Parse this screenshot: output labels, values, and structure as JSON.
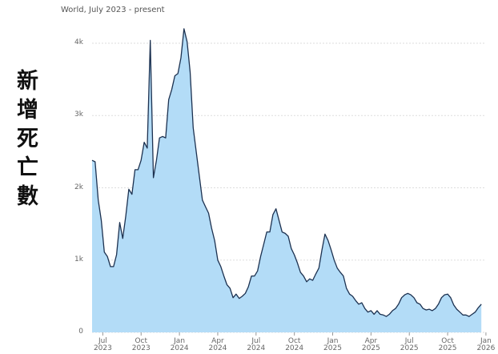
{
  "chart_data": {
    "type": "area",
    "subtitle": "World, July 2023 - present",
    "ylabel": "新增死亡數",
    "color": "#b3dcf7",
    "line_color": "#1c3150",
    "grid": true,
    "xlim": [
      2023.43,
      2025.99
    ],
    "ylim": [
      0,
      4000
    ],
    "yticks": [
      0,
      {
        "value": 1000,
        "label": "1k"
      },
      {
        "value": 2000,
        "label": "2k"
      },
      {
        "value": 3000,
        "label": "3k"
      },
      {
        "value": 4000,
        "label": "4k"
      }
    ],
    "xticks": [
      {
        "value": 2023.5,
        "label": "Jul 2023"
      },
      {
        "value": 2023.75,
        "label": "Oct 2023"
      },
      {
        "value": 2024,
        "label": "Jan 2024"
      },
      {
        "value": 2024.25,
        "label": "Apr 2024"
      },
      {
        "value": 2024.5,
        "label": "Jul 2024"
      },
      {
        "value": 2024.75,
        "label": "Oct 2024"
      },
      {
        "value": 2025,
        "label": "Jan 2025"
      },
      {
        "value": 2025.25,
        "label": "Apr 2025"
      },
      {
        "value": 2025.5,
        "label": "Jul 2025"
      },
      {
        "value": 2025.75,
        "label": "Oct 2025"
      },
      {
        "value": 2026,
        "label": "Jan 2026"
      }
    ],
    "x": [
      2023.43,
      2023.45,
      2023.47,
      2023.49,
      2023.51,
      2023.53,
      2023.55,
      2023.57,
      2023.59,
      2023.61,
      2023.63,
      2023.65,
      2023.67,
      2023.69,
      2023.71,
      2023.73,
      2023.75,
      2023.77,
      2023.79,
      2023.81,
      2023.83,
      2023.85,
      2023.87,
      2023.89,
      2023.91,
      2023.93,
      2023.95,
      2023.97,
      2023.99,
      2024.01,
      2024.03,
      2024.05,
      2024.07,
      2024.09,
      2024.11,
      2024.13,
      2024.15,
      2024.17,
      2024.19,
      2024.21,
      2024.23,
      2024.25,
      2024.27,
      2024.29,
      2024.31,
      2024.33,
      2024.35,
      2024.37,
      2024.39,
      2024.41,
      2024.43,
      2024.45,
      2024.47,
      2024.49,
      2024.51,
      2024.53,
      2024.55,
      2024.57,
      2024.59,
      2024.61,
      2024.63,
      2024.65,
      2024.67,
      2024.69,
      2024.71,
      2024.73,
      2024.75,
      2024.77,
      2024.79,
      2024.81,
      2024.83,
      2024.85,
      2024.87,
      2024.89,
      2024.91,
      2024.93,
      2024.95,
      2024.97,
      2024.99,
      2025.01,
      2025.03,
      2025.05,
      2025.07,
      2025.09,
      2025.11,
      2025.13,
      2025.15,
      2025.17,
      2025.19,
      2025.21,
      2025.23,
      2025.25,
      2025.27,
      2025.29,
      2025.31,
      2025.33,
      2025.35,
      2025.37,
      2025.39,
      2025.41,
      2025.43,
      2025.45,
      2025.47,
      2025.49,
      2025.51,
      2025.53,
      2025.55,
      2025.57,
      2025.59,
      2025.61,
      2025.63,
      2025.65,
      2025.67,
      2025.69,
      2025.71,
      2025.73,
      2025.75,
      2025.77,
      2025.79,
      2025.81,
      2025.83,
      2025.85,
      2025.87,
      2025.89,
      2025.91,
      2025.93,
      2025.95,
      2025.97
    ],
    "values": [
      2380,
      2360,
      1830,
      1550,
      1110,
      1050,
      910,
      910,
      1075,
      1520,
      1300,
      1610,
      1980,
      1910,
      2250,
      2250,
      2380,
      2630,
      2550,
      4040,
      2140,
      2380,
      2690,
      2710,
      2690,
      3220,
      3360,
      3550,
      3580,
      3800,
      4200,
      4020,
      3600,
      2830,
      2490,
      2160,
      1830,
      1740,
      1650,
      1440,
      1270,
      1000,
      910,
      780,
      660,
      610,
      480,
      530,
      470,
      500,
      540,
      630,
      780,
      780,
      850,
      1050,
      1220,
      1390,
      1390,
      1630,
      1710,
      1550,
      1390,
      1370,
      1330,
      1160,
      1070,
      960,
      830,
      780,
      700,
      740,
      720,
      810,
      890,
      1140,
      1360,
      1270,
      1140,
      1000,
      890,
      830,
      780,
      610,
      530,
      500,
      440,
      390,
      410,
      330,
      280,
      300,
      250,
      300,
      250,
      240,
      220,
      250,
      300,
      330,
      390,
      480,
      520,
      540,
      520,
      480,
      410,
      390,
      330,
      310,
      320,
      300,
      330,
      390,
      480,
      520,
      530,
      480,
      380,
      320,
      280,
      240,
      240,
      220,
      250,
      280,
      340,
      390
    ]
  }
}
